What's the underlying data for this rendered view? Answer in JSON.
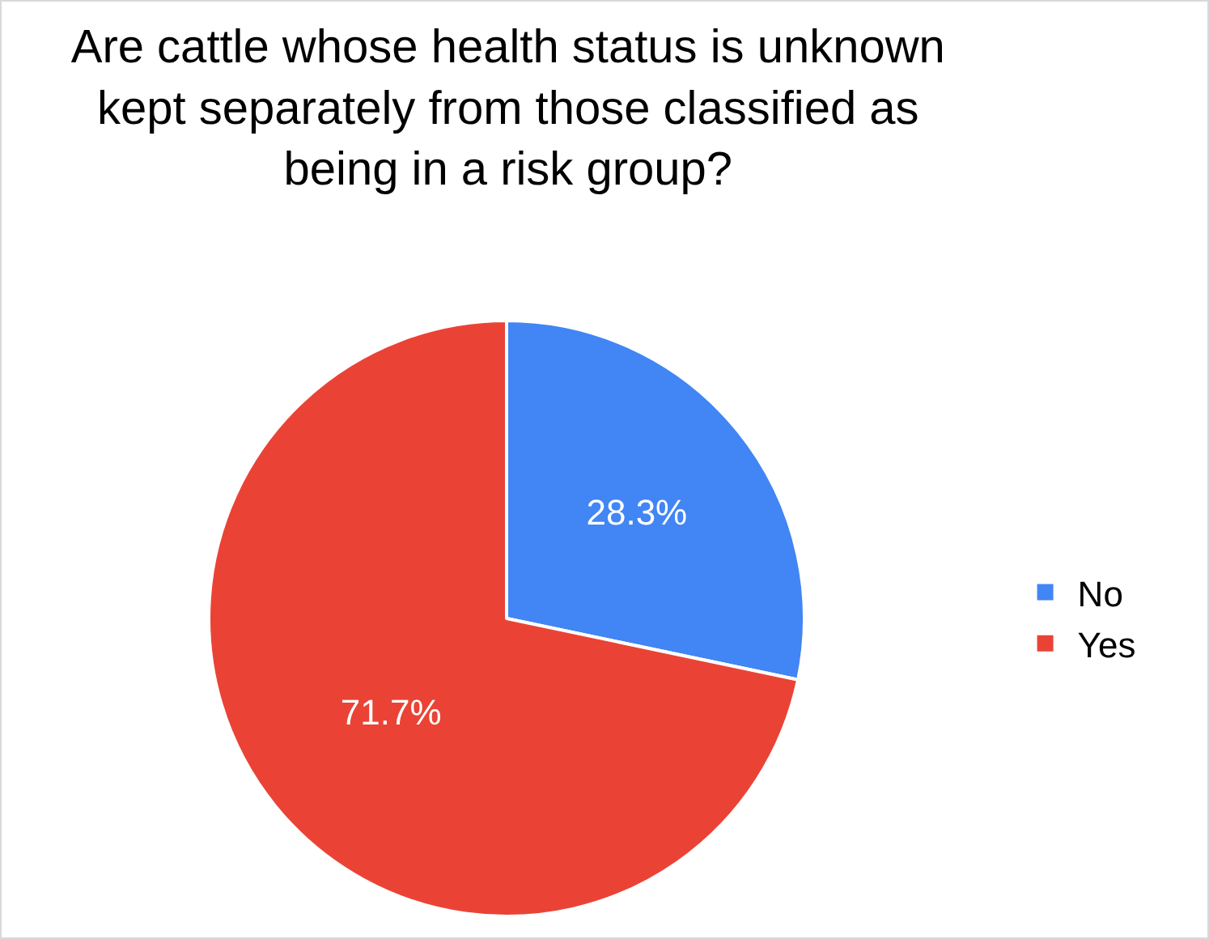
{
  "chart_data": {
    "type": "pie",
    "title": "Are cattle whose health status is unknown kept separately from those classified as being in a risk group?",
    "categories": [
      "No",
      "Yes"
    ],
    "values": [
      28.3,
      71.7
    ],
    "value_labels": [
      "28.3%",
      "71.7%"
    ],
    "colors": [
      "#4285f4",
      "#ea4335"
    ],
    "legend": "right"
  }
}
